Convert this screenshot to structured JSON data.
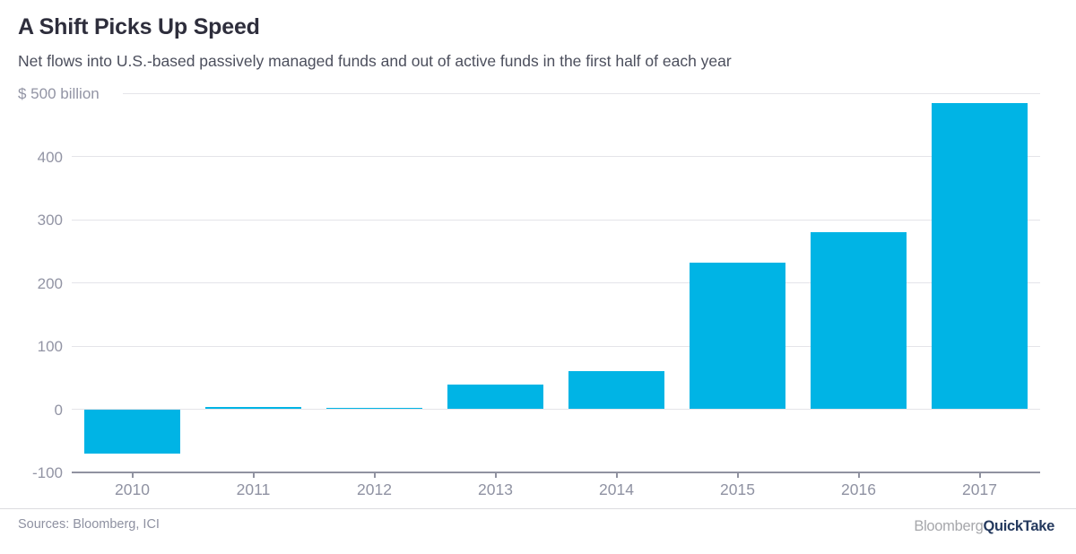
{
  "chart_data": {
    "type": "bar",
    "title": "A Shift Picks Up Speed",
    "subtitle": "Net flows into U.S.-based passively managed funds and out of active funds in the first half of each year",
    "categories": [
      "2010",
      "2011",
      "2012",
      "2013",
      "2014",
      "2015",
      "2016",
      "2017"
    ],
    "values": [
      -70,
      4,
      2,
      39,
      60,
      232,
      280,
      484
    ],
    "ylabel": "$ billion",
    "ylim": [
      -100,
      500
    ],
    "yticks": [
      500,
      400,
      300,
      200,
      100,
      0,
      -100
    ],
    "ytick_labels": [
      "$ 500 billion",
      "400",
      "300",
      "200",
      "100",
      "0",
      "-100"
    ],
    "legend": "none",
    "grid": "horizontal"
  },
  "footer": {
    "sources": "Sources: Bloomberg, ICI",
    "logo": {
      "gray": "Bloomberg",
      "bold": "QuickTake"
    }
  },
  "colors": {
    "bar": "#00b4e5",
    "gridline": "#e4e4e9",
    "axis": "#9092a0",
    "tick_label": "#9294a4",
    "title": "#2e2e3c",
    "subtitle": "#4c4f5d",
    "divider": "#dcdce0",
    "source_text": "#8e91a1",
    "logo_gray": "#a6a7ab",
    "logo_navy": "#24395e"
  }
}
